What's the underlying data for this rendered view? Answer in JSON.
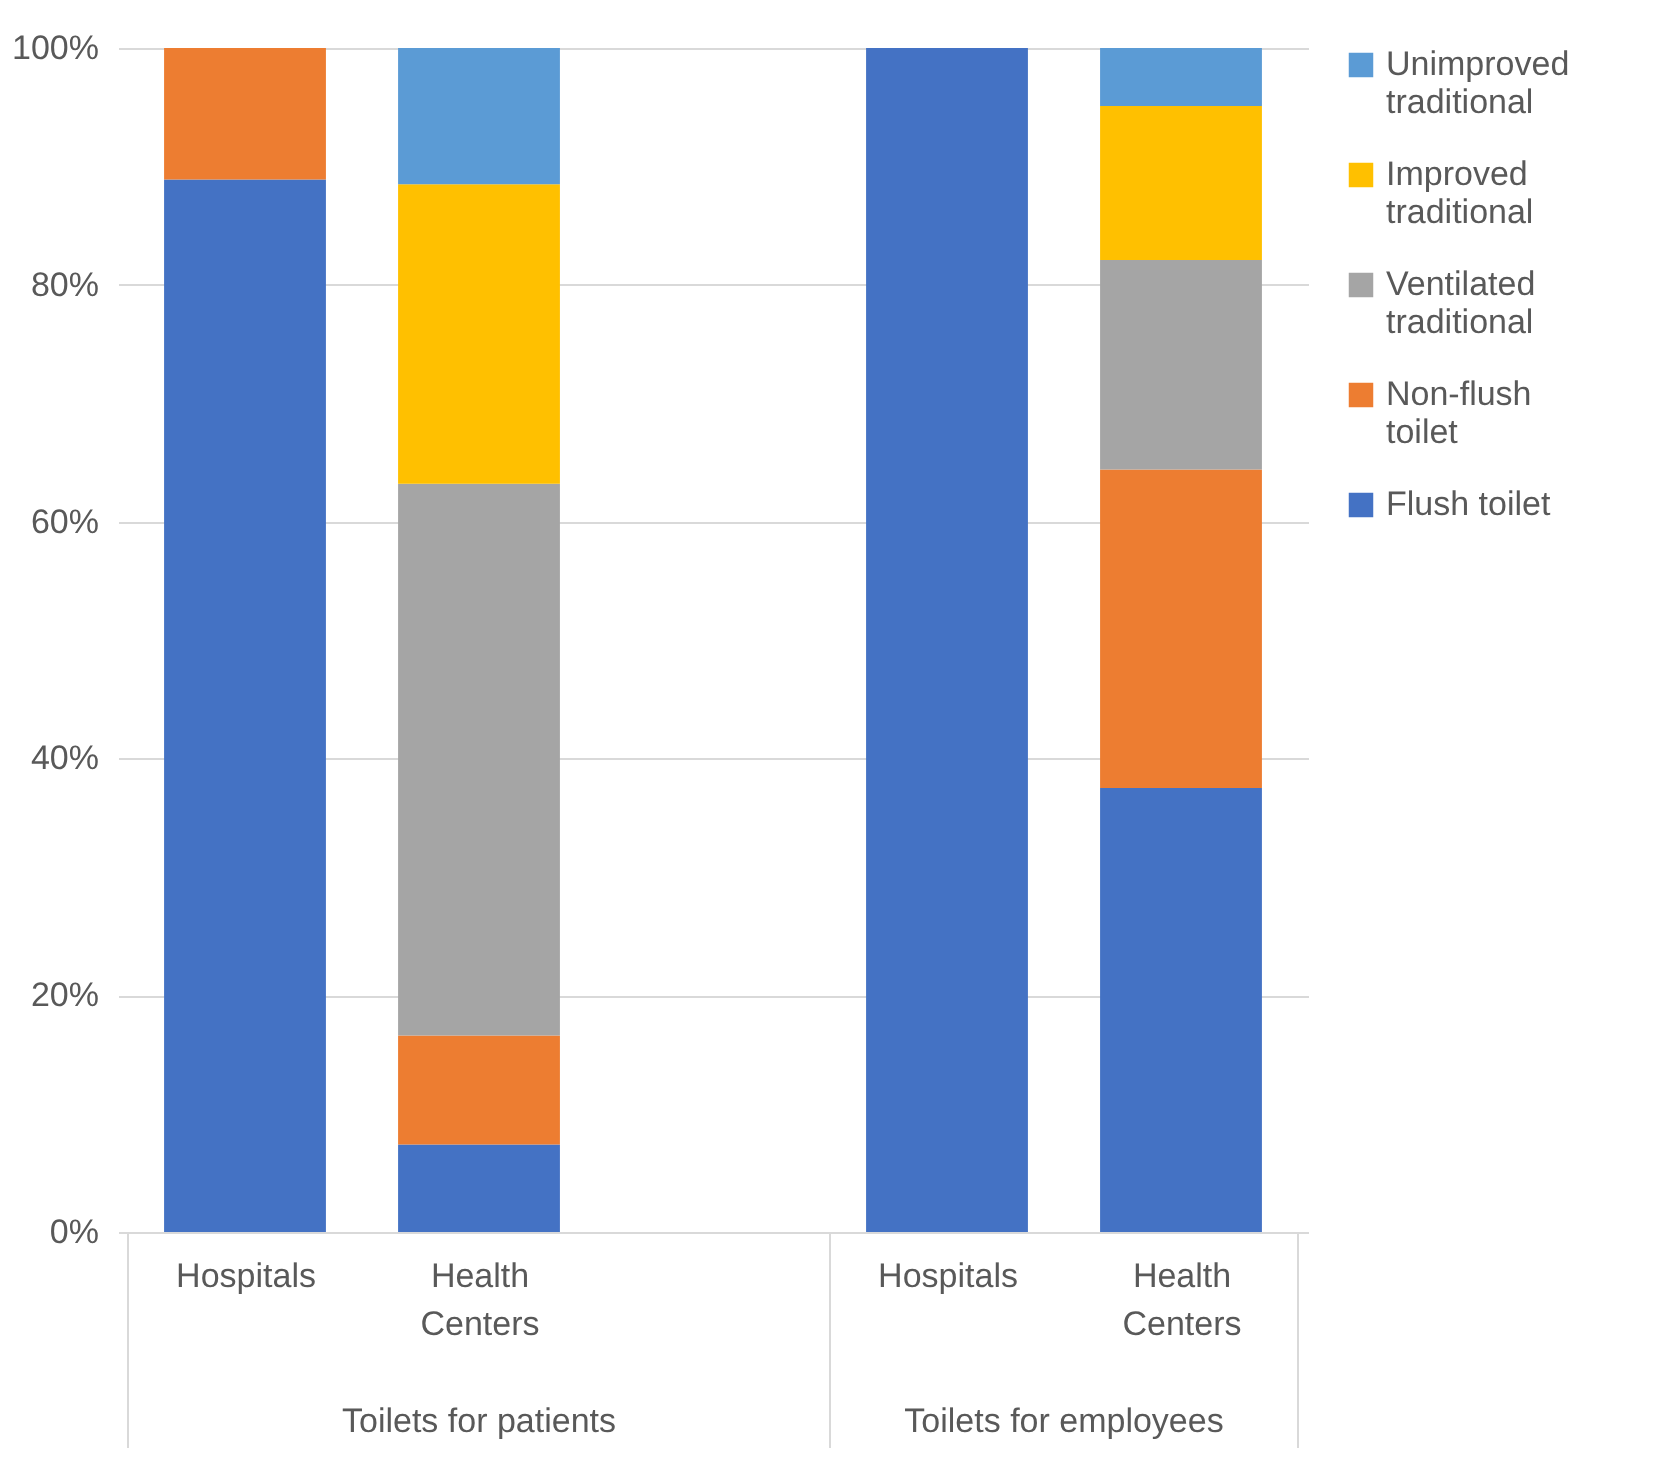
{
  "chart_data": {
    "type": "bar",
    "stacked": true,
    "categories": [
      "Hospitals",
      "Health Centers",
      null,
      "Hospitals",
      "Health Centers"
    ],
    "series": [
      {
        "name": "Flush toilet",
        "color": "#4472c4",
        "values": [
          88.9,
          7.4,
          null,
          100,
          37.5
        ]
      },
      {
        "name": "Non-flush toilet",
        "color": "#ed7d31",
        "values": [
          11.1,
          9.2,
          null,
          0,
          26.9
        ]
      },
      {
        "name": "Ventilated traditional",
        "color": "#a5a5a5",
        "values": [
          0,
          46.6,
          null,
          0,
          17.7
        ]
      },
      {
        "name": "Improved traditional",
        "color": "#ffc000",
        "values": [
          0,
          25.3,
          null,
          0,
          13.0
        ]
      },
      {
        "name": "Unimproved traditional",
        "color": "#5b9bd5",
        "values": [
          0,
          11.5,
          null,
          0,
          4.9
        ]
      }
    ],
    "ylim": [
      0,
      100
    ],
    "yticks": [
      {
        "value": 0,
        "label": "0%"
      },
      {
        "value": 20,
        "label": "20%"
      },
      {
        "value": 40,
        "label": "40%"
      },
      {
        "value": 60,
        "label": "60%"
      },
      {
        "value": 80,
        "label": "80%"
      },
      {
        "value": 100,
        "label": "100%"
      }
    ],
    "annotations": [
      "Toilets for patients",
      "Toilets for employees"
    ],
    "grid": "y",
    "legend": "right"
  }
}
